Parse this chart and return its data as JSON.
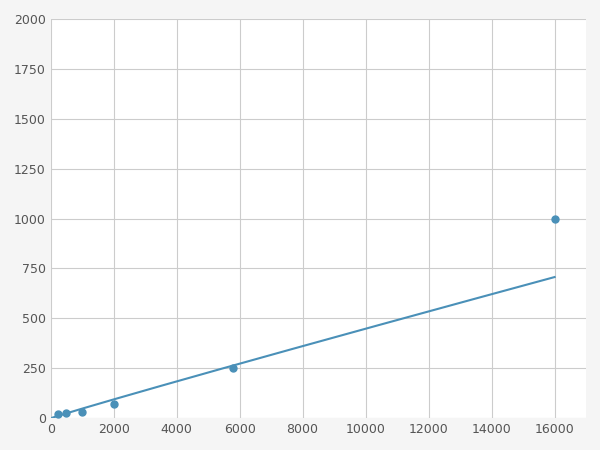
{
  "x": [
    250,
    500,
    1000,
    2000,
    5800,
    16000
  ],
  "y": [
    20,
    25,
    30,
    70,
    250,
    1000
  ],
  "line_color": "#4a90b8",
  "marker_color": "#4a90b8",
  "marker_size": 5,
  "xlim": [
    0,
    17000
  ],
  "ylim": [
    0,
    2000
  ],
  "xticks": [
    0,
    2000,
    4000,
    6000,
    8000,
    10000,
    12000,
    14000,
    16000
  ],
  "yticks": [
    0,
    250,
    500,
    750,
    1000,
    1250,
    1500,
    1750,
    2000
  ],
  "grid": true,
  "background_color": "#ffffff",
  "figure_bg": "#f5f5f5"
}
